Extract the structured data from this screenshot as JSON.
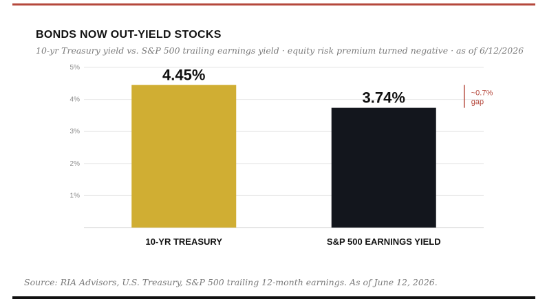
{
  "header": {
    "title": "BONDS NOW OUT-YIELD STOCKS",
    "subtitle": "10-yr Treasury yield vs. S&P 500 trailing earnings yield · equity risk premium turned negative · as of 6/12/2026"
  },
  "footer": {
    "source": "Source: RIA Advisors, U.S. Treasury, S&P 500 trailing 12-month earnings. As of June 12, 2026."
  },
  "colors": {
    "top_rule": "#b5483c",
    "bottom_rule": "#111111",
    "treasury_bar": "#d0ae33",
    "earnings_bar": "#13161d",
    "gap_annotation": "#b5483c",
    "gridline": "#e6e6e6",
    "axis": "#cccccc"
  },
  "chart_data": {
    "type": "bar",
    "categories": [
      "10-YR TREASURY",
      "S&P 500 EARNINGS YIELD"
    ],
    "values": [
      4.45,
      3.74
    ],
    "value_labels": [
      "4.45%",
      "3.74%"
    ],
    "bar_colors": [
      "#d0ae33",
      "#13161d"
    ],
    "ylim": [
      0,
      5
    ],
    "yticks": [
      1,
      2,
      3,
      4,
      5
    ],
    "ytick_labels": [
      "1%",
      "2%",
      "3%",
      "4%",
      "5%"
    ],
    "grid": true,
    "annotation": {
      "lines": [
        "~0.7%",
        "gap"
      ],
      "from_value": 4.45,
      "to_value": 3.74
    }
  }
}
